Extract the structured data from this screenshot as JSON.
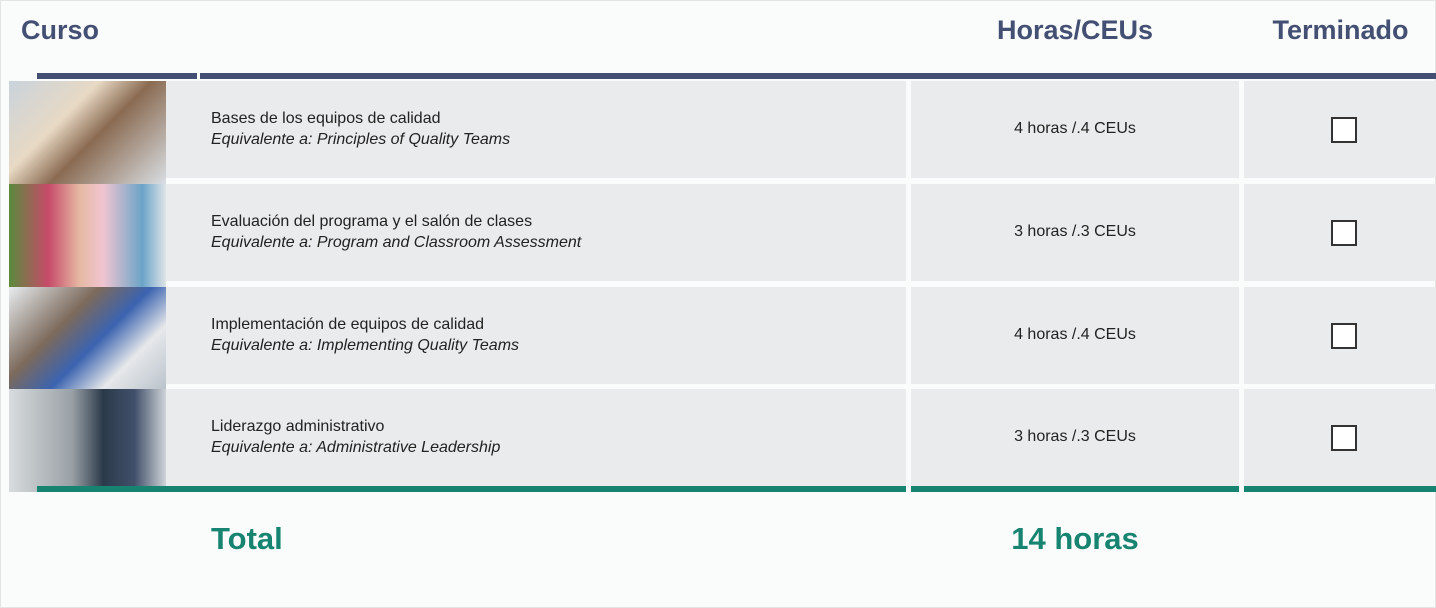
{
  "header": {
    "course": "Curso",
    "hours": "Horas/CEUs",
    "done": "Terminado"
  },
  "rows": [
    {
      "title": "Bases de los equipos de calidad",
      "equivalent": "Equivalente a: Principles of Quality Teams",
      "hours": "4 horas /.4 CEUs"
    },
    {
      "title": "Evaluación del programa y el salón de clases",
      "equivalent": "Equivalente a: Program and Classroom Assessment",
      "hours": "3 horas /.3 CEUs"
    },
    {
      "title": "Implementación de equipos de calidad",
      "equivalent": "Equivalente a: Implementing Quality Teams",
      "hours": "4 horas /.4 CEUs"
    },
    {
      "title": "Liderazgo administrativo",
      "equivalent": "Equivalente a: Administrative Leadership",
      "hours": "3 horas /.3 CEUs"
    }
  ],
  "total": {
    "label": "Total",
    "value": "14 horas"
  }
}
